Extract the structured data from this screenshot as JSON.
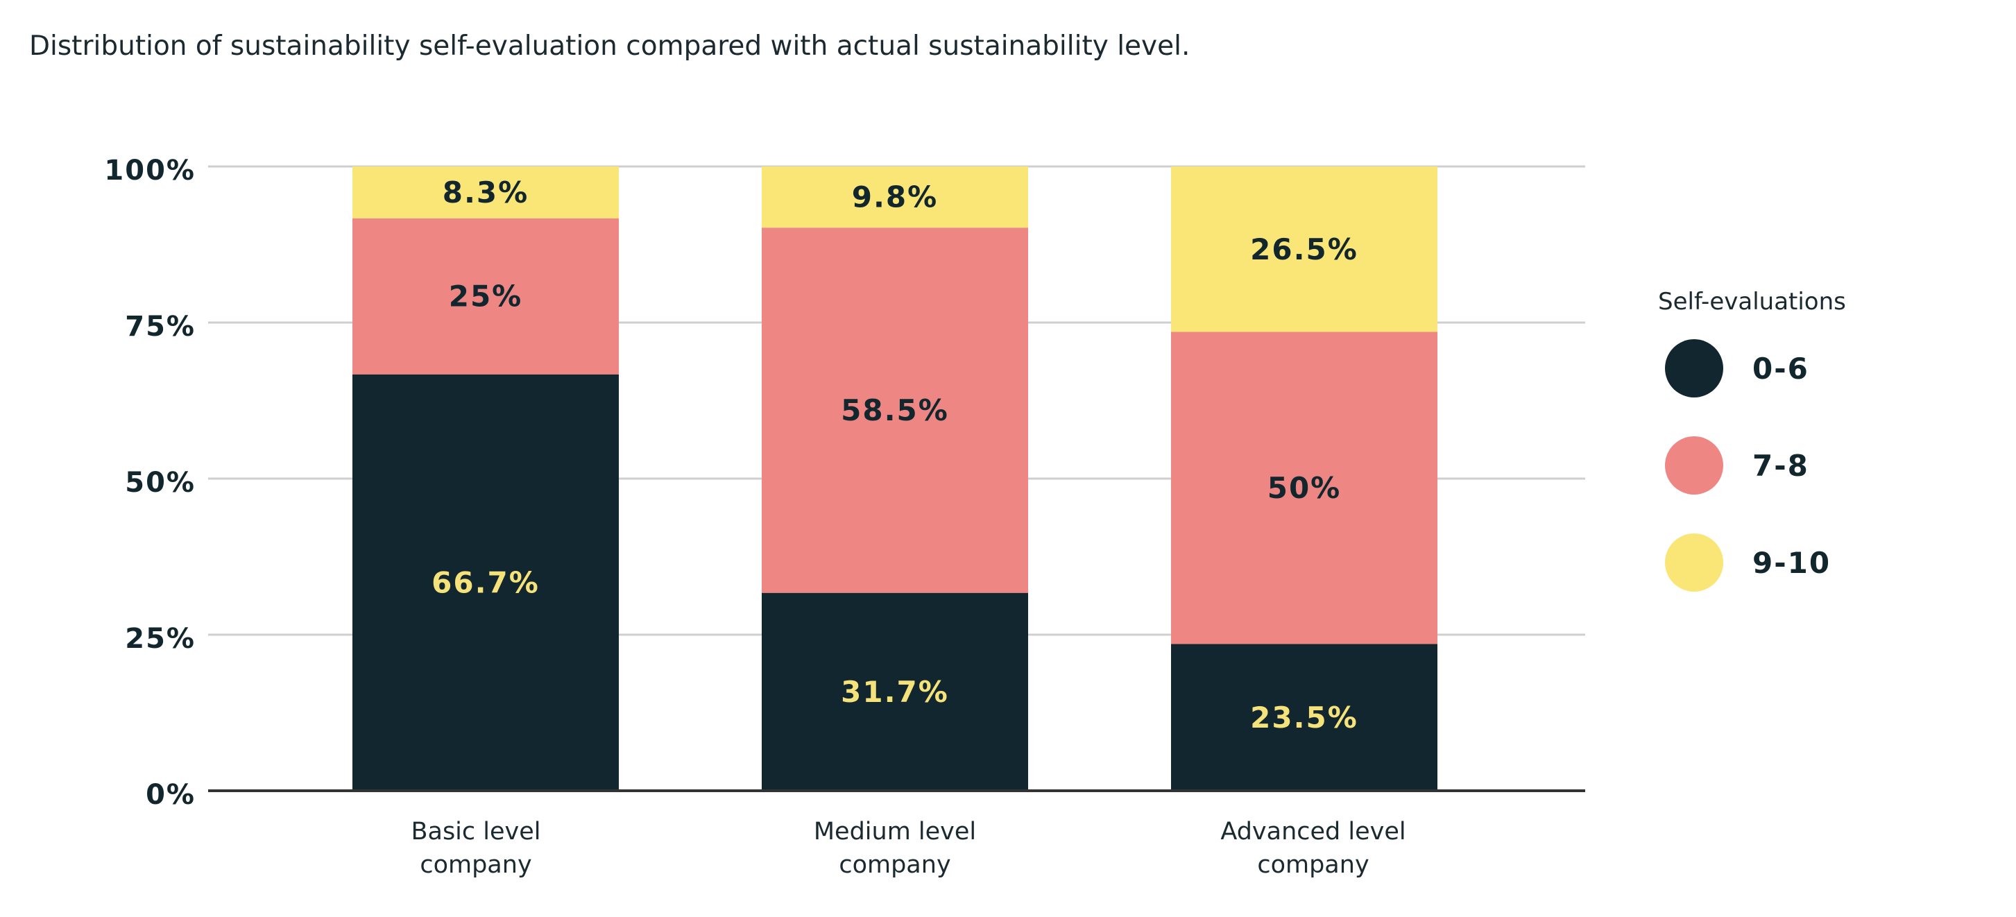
{
  "title": "Distribution of sustainability self-evaluation compared with actual sustainability level.",
  "colors": {
    "s0_6": "#11262e",
    "s7_8": "#ee8683",
    "s9_10": "#fae677",
    "grid": "#cfcfcf",
    "axis": "#333333",
    "text_dark": "#12262e",
    "text_light": "#f6e27a"
  },
  "chart_data": {
    "type": "bar",
    "stacked": true,
    "categories": [
      [
        "Basic level",
        "company"
      ],
      [
        "Medium level",
        "company"
      ],
      [
        "Advanced level",
        "company"
      ]
    ],
    "series": [
      {
        "name": "0-6",
        "values": [
          66.7,
          31.7,
          23.5
        ],
        "labels": [
          "66.7%",
          "31.7%",
          "23.5%"
        ]
      },
      {
        "name": "7-8",
        "values": [
          25,
          58.5,
          50
        ],
        "labels": [
          "25%",
          "58.5%",
          "50%"
        ]
      },
      {
        "name": "9-10",
        "values": [
          8.3,
          9.8,
          26.5
        ],
        "labels": [
          "8.3%",
          "9.8%",
          "26.5%"
        ]
      }
    ],
    "yticks": [
      0,
      25,
      50,
      75,
      100
    ],
    "ytick_labels": [
      "0%",
      "25%",
      "50%",
      "75%",
      "100%"
    ],
    "ylim": [
      0,
      100
    ],
    "grid": true,
    "legend": {
      "title": "Self-evaluations",
      "position": "right"
    }
  }
}
